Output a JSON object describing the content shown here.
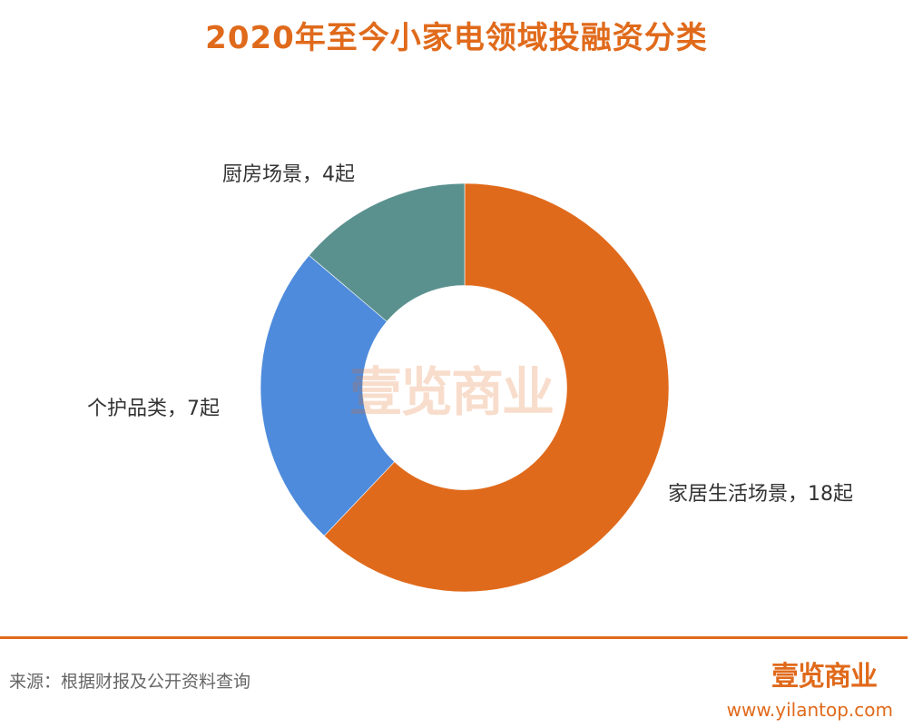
{
  "title": "2020年至今小家电领域投融资分类",
  "colors": {
    "accent": "#E06A1B",
    "home_living": "#E06A1B",
    "personal_care": "#4E8BDC",
    "kitchen": "#5A918F",
    "label_text": "#333333",
    "footer_text": "#666666"
  },
  "chart_data": {
    "type": "pie",
    "variant": "donut",
    "title": "2020年至今小家电领域投融资分类",
    "categories": [
      "家居生活场景",
      "个护品类",
      "厨房场景"
    ],
    "values": [
      18,
      7,
      4
    ],
    "unit": "起",
    "data_labels": [
      "家居生活场景，18起",
      "个护品类，7起",
      "厨房场景，4起"
    ],
    "colors": [
      "#E06A1B",
      "#4E8BDC",
      "#5A918F"
    ],
    "start_angle": "12 o'clock",
    "direction": "clockwise",
    "inner_radius_ratio": 0.5,
    "legend": "none"
  },
  "labels": {
    "home_living": "家居生活场景，18起",
    "personal_care": "个护品类，7起",
    "kitchen": "厨房场景，4起"
  },
  "watermark": "壹览商业",
  "footer": {
    "source": "来源：根据财报及公开资料查询",
    "logo": "壹览商业",
    "url": "www.yilantop.com"
  }
}
